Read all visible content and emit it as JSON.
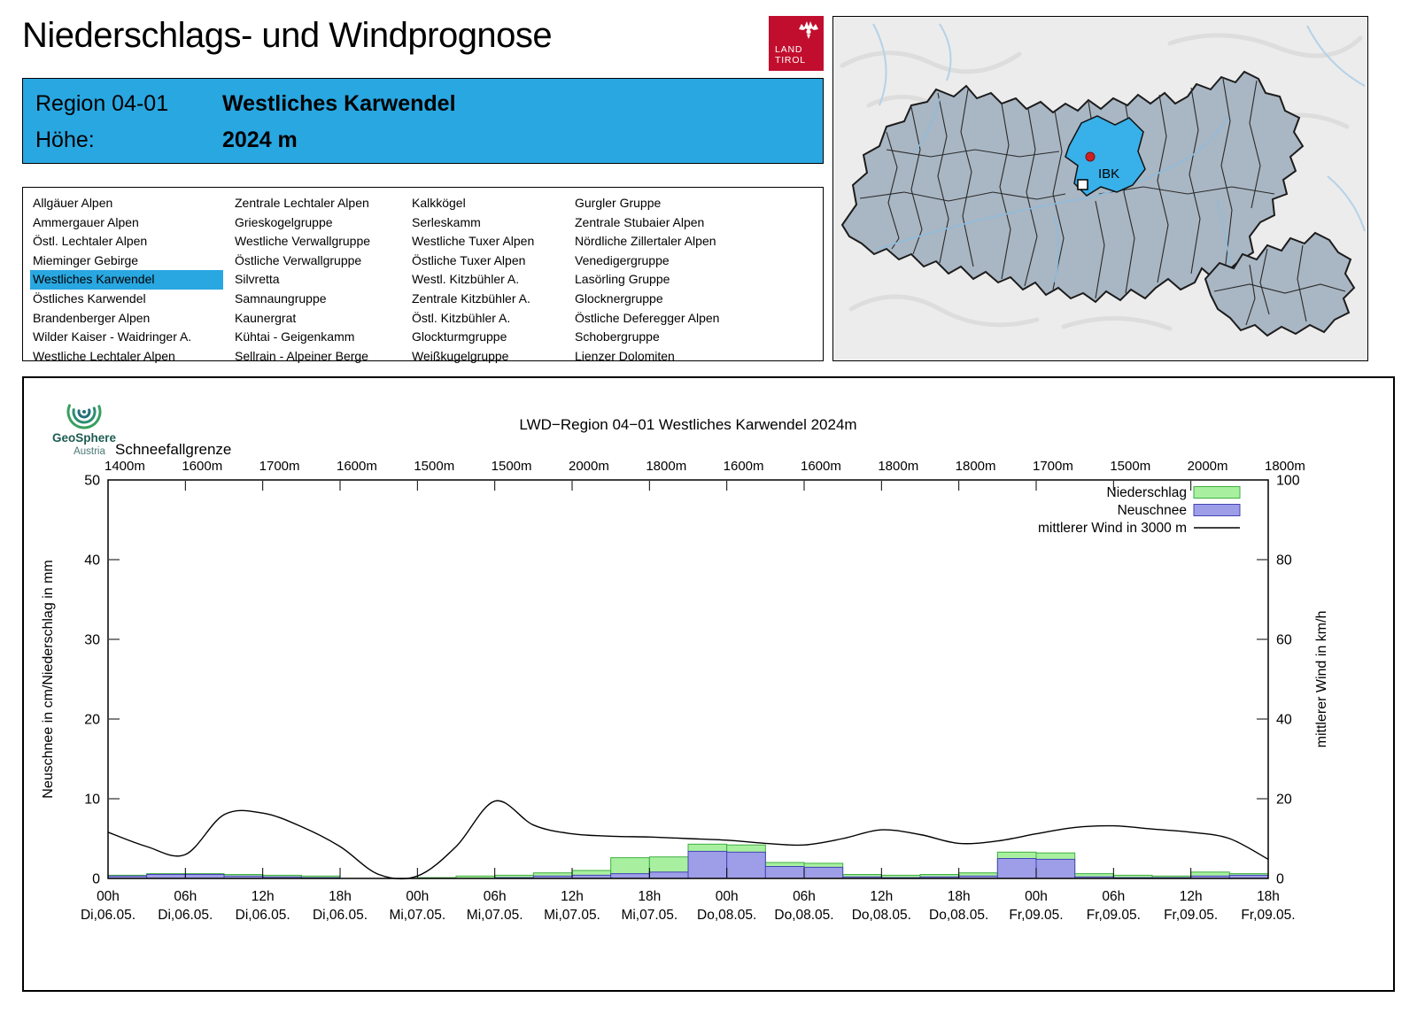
{
  "page": {
    "title": "Niederschlags- und Windprognose"
  },
  "logo": {
    "line1": "LAND",
    "line2": "TIROL"
  },
  "map": {
    "marker_label": "IBK"
  },
  "region_header": {
    "region_label": "Region 04-01",
    "region_name": "Westliches Karwendel",
    "altitude_label": "Höhe:",
    "altitude_value": "2024 m"
  },
  "region_list": {
    "selected": "Westliches Karwendel",
    "columns": [
      [
        "Allgäuer Alpen",
        "Ammergauer Alpen",
        "Östl. Lechtaler Alpen",
        "Mieminger Gebirge",
        "Westliches Karwendel",
        "Östliches Karwendel",
        "Brandenberger Alpen",
        "Wilder Kaiser - Waidringer A.",
        "Westliche Lechtaler Alpen"
      ],
      [
        "Zentrale Lechtaler Alpen",
        "Grieskogelgruppe",
        "Westliche Verwallgruppe",
        "Östliche Verwallgruppe",
        "Silvretta",
        "Samnaungruppe",
        "Kaunergrat",
        "Kühtai - Geigenkamm",
        "Sellrain - Alpeiner Berge"
      ],
      [
        "Kalkkögel",
        "Serleskamm",
        "Westliche Tuxer Alpen",
        "Östliche Tuxer Alpen",
        "Westl. Kitzbühler A.",
        "Zentrale Kitzbühler A.",
        "Östl. Kitzbühler A.",
        "Glockturmgruppe",
        "Weißkugelgruppe"
      ],
      [
        "Gurgler Gruppe",
        "Zentrale Stubaier Alpen",
        "Nördliche Zillertaler Alpen",
        "Venedigergruppe",
        "Lasörling Gruppe",
        "Glocknergruppe",
        "Östliche Deferegger Alpen",
        "Schobergruppe",
        "Lienzer Dolomiten"
      ]
    ]
  },
  "geosphere": {
    "name": "GeoSphere",
    "sub": "Austria"
  },
  "colors": {
    "header_blue": "#29a7e1",
    "map_region_fill": "#a9b6c3",
    "map_highlight": "#38b0e9",
    "logo_red": "#c20e2e"
  },
  "chart_data": {
    "type": "bar+line",
    "title": "LWD−Region 04−01 Westliches Karwendel 2024m",
    "snowline_label": "Schneefallgrenze",
    "snowline_values": [
      "1400m",
      "1600m",
      "1700m",
      "1600m",
      "1500m",
      "1500m",
      "2000m",
      "1800m",
      "1600m",
      "1600m",
      "1800m",
      "1800m",
      "1700m",
      "1500m",
      "2000m",
      "1800m"
    ],
    "ylabel_left": "Neuschnee in cm/Niederschlag in mm",
    "ylabel_right": "mittlerer Wind in km/h",
    "ylim_left": [
      0,
      50
    ],
    "ylim_right": [
      0,
      100
    ],
    "yticks_left": [
      0,
      10,
      20,
      30,
      40,
      50
    ],
    "yticks_right": [
      0,
      20,
      40,
      60,
      80,
      100
    ],
    "x_hours_span": [
      0,
      90
    ],
    "x_tick_step_h": 6,
    "x_bar_step_h": 3,
    "x_tick_labels": [
      {
        "hour": "00h",
        "date": "Di,06.05."
      },
      {
        "hour": "06h",
        "date": "Di,06.05."
      },
      {
        "hour": "12h",
        "date": "Di,06.05."
      },
      {
        "hour": "18h",
        "date": "Di,06.05."
      },
      {
        "hour": "00h",
        "date": "Mi,07.05."
      },
      {
        "hour": "06h",
        "date": "Mi,07.05."
      },
      {
        "hour": "12h",
        "date": "Mi,07.05."
      },
      {
        "hour": "18h",
        "date": "Mi,07.05."
      },
      {
        "hour": "00h",
        "date": "Do,08.05."
      },
      {
        "hour": "06h",
        "date": "Do,08.05."
      },
      {
        "hour": "12h",
        "date": "Do,08.05."
      },
      {
        "hour": "18h",
        "date": "Do,08.05."
      },
      {
        "hour": "00h",
        "date": "Fr,09.05."
      },
      {
        "hour": "06h",
        "date": "Fr,09.05."
      },
      {
        "hour": "12h",
        "date": "Fr,09.05."
      },
      {
        "hour": "18h",
        "date": "Fr,09.05."
      }
    ],
    "legend": [
      {
        "label": "Niederschlag",
        "swatch": "bar",
        "fill": "#a8f0a0",
        "stroke": "#3fae3f"
      },
      {
        "label": "Neuschnee",
        "swatch": "bar",
        "fill": "#9e9ee8",
        "stroke": "#4444b4"
      },
      {
        "label": "mittlerer Wind in 3000 m",
        "swatch": "line",
        "stroke": "#000000"
      }
    ],
    "bars_3h": {
      "precipitation_mm": [
        0.4,
        0.6,
        0.6,
        0.5,
        0.4,
        0.3,
        0,
        0,
        0.1,
        0.3,
        0.4,
        0.7,
        1.0,
        2.6,
        2.7,
        4.3,
        4.2,
        2.0,
        1.9,
        0.5,
        0.4,
        0.5,
        0.7,
        3.3,
        3.2,
        0.6,
        0.4,
        0.3,
        0.8,
        0.6
      ],
      "new_snow_cm": [
        0.3,
        0.5,
        0.5,
        0.3,
        0.2,
        0.1,
        0,
        0,
        0,
        0,
        0.1,
        0.3,
        0.4,
        0.6,
        0.8,
        3.4,
        3.3,
        1.5,
        1.4,
        0.2,
        0.1,
        0.2,
        0.3,
        2.5,
        2.4,
        0.2,
        0.1,
        0.1,
        0.3,
        0.4
      ]
    },
    "wind_kmh_3h": [
      11.6,
      8.0,
      6.0,
      16.0,
      16.4,
      13.0,
      8.0,
      1.0,
      0.6,
      8.0,
      19.4,
      13.4,
      11.2,
      10.6,
      10.4,
      10.0,
      9.6,
      8.8,
      8.4,
      10.0,
      12.2,
      11.0,
      8.8,
      9.4,
      11.2,
      12.8,
      13.2,
      12.4,
      11.6,
      10.0,
      4.8
    ]
  }
}
